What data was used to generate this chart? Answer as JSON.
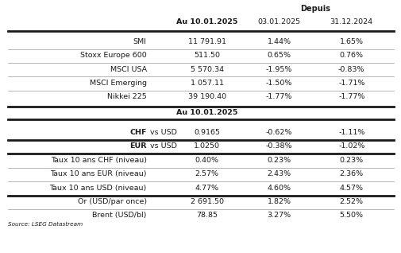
{
  "title_depuis": "Depuis",
  "col_headers": [
    "Au 10.01.2025",
    "03.01.2025",
    "31.12.2024"
  ],
  "subheader2": "Au 10.01.2025",
  "section1_rows": [
    {
      "label": "SMI",
      "val1": "11 791.91",
      "val2": "1.44%",
      "val3": "1.65%"
    },
    {
      "label": "Stoxx Europe 600",
      "val1": "511.50",
      "val2": "0.65%",
      "val3": "0.76%"
    },
    {
      "label": "MSCI USA",
      "val1": "5 570.34",
      "val2": "-1.95%",
      "val3": "-0.83%"
    },
    {
      "label": "MSCI Emerging",
      "val1": "1 057.11",
      "val2": "-1.50%",
      "val3": "-1.71%"
    },
    {
      "label": "Nikkei 225",
      "val1": "39 190.40",
      "val2": "-1.77%",
      "val3": "-1.77%"
    }
  ],
  "section2_rows": [
    {
      "label": "CHF vs USD",
      "bold_prefix": "CHF",
      "bold_suffix": " vs USD",
      "val1": "0.9165",
      "val2": "-0.62%",
      "val3": "-1.11%",
      "thick_bottom": true
    },
    {
      "label": "EUR vs USD",
      "bold_prefix": "EUR",
      "bold_suffix": " vs USD",
      "val1": "1.0250",
      "val2": "-0.38%",
      "val3": "-1.02%",
      "thick_bottom": true
    },
    {
      "label": "Taux 10 ans CHF (niveau)",
      "bold_prefix": null,
      "bold_suffix": null,
      "val1": "0.40%",
      "val2": "0.23%",
      "val3": "0.23%",
      "thick_bottom": false
    },
    {
      "label": "Taux 10 ans EUR (niveau)",
      "bold_prefix": null,
      "bold_suffix": null,
      "val1": "2.57%",
      "val2": "2.43%",
      "val3": "2.36%",
      "thick_bottom": false
    },
    {
      "label": "Taux 10 ans USD (niveau)",
      "bold_prefix": null,
      "bold_suffix": null,
      "val1": "4.77%",
      "val2": "4.60%",
      "val3": "4.57%",
      "thick_bottom": true
    },
    {
      "label": "Or (USD/par once)",
      "bold_prefix": null,
      "bold_suffix": null,
      "val1": "2 691.50",
      "val2": "1.82%",
      "val3": "2.52%",
      "thick_bottom": false
    },
    {
      "label": "Brent (USD/bl)",
      "bold_prefix": null,
      "bold_suffix": null,
      "val1": "78.85",
      "val2": "3.27%",
      "val3": "5.50%",
      "thick_bottom": false
    }
  ],
  "source": "Source: LSEG Datastream",
  "bg_color": "#ffffff",
  "text_color": "#1a1a1a",
  "thin_line_color": "#999999",
  "thick_line_color": "#1a1a1a",
  "font_size": 6.8,
  "header_font_size": 7.0
}
